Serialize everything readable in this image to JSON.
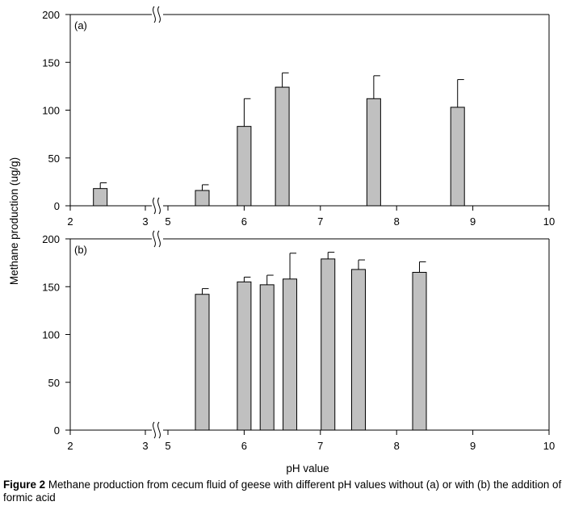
{
  "figure": {
    "caption_label": "Figure 2",
    "caption_text": "Methane production from cecum fluid of geese with different pH values without (a) or with (b) the addition of formic acid"
  },
  "chart_data": [
    {
      "type": "bar",
      "panel_label": "(a)",
      "ylabel": "Methane production (ug/g)",
      "xlabel": "pH value",
      "ylim": [
        0,
        200
      ],
      "yticks": [
        0,
        50,
        100,
        150,
        200
      ],
      "x_axis": "broken between 3 and 5",
      "xticks": [
        "2",
        "3",
        "5",
        "6",
        "7",
        "8",
        "9",
        "10"
      ],
      "grid": false,
      "bars": [
        {
          "x": 2.4,
          "value": 18,
          "error": 6
        },
        {
          "x": 5.45,
          "value": 16,
          "error": 6
        },
        {
          "x": 6.0,
          "value": 83,
          "error": 29
        },
        {
          "x": 6.5,
          "value": 124,
          "error": 15
        },
        {
          "x": 7.7,
          "value": 112,
          "error": 24
        },
        {
          "x": 8.8,
          "value": 103,
          "error": 29
        }
      ]
    },
    {
      "type": "bar",
      "panel_label": "(b)",
      "ylabel": "Methane production (ug/g)",
      "xlabel": "pH value",
      "ylim": [
        0,
        200
      ],
      "yticks": [
        0,
        50,
        100,
        150,
        200
      ],
      "x_axis": "broken between 3 and 5",
      "xticks": [
        "2",
        "3",
        "5",
        "6",
        "7",
        "8",
        "9",
        "10"
      ],
      "grid": false,
      "bars": [
        {
          "x": 5.45,
          "value": 142,
          "error": 6
        },
        {
          "x": 6.0,
          "value": 155,
          "error": 5
        },
        {
          "x": 6.3,
          "value": 152,
          "error": 10
        },
        {
          "x": 6.6,
          "value": 158,
          "error": 27
        },
        {
          "x": 7.1,
          "value": 179,
          "error": 7
        },
        {
          "x": 7.5,
          "value": 168,
          "error": 10
        },
        {
          "x": 8.3,
          "value": 165,
          "error": 11
        }
      ]
    }
  ]
}
